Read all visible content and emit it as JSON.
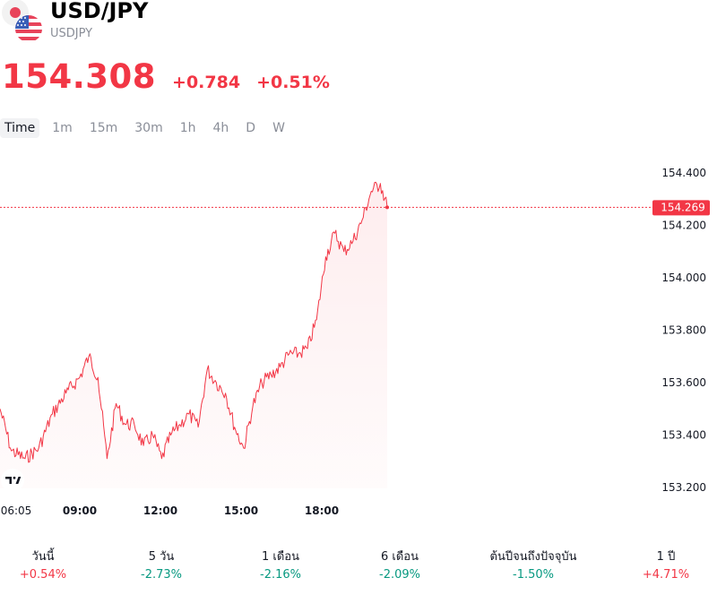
{
  "header": {
    "title": "USD/JPY",
    "subtitle": "USDJPY"
  },
  "quote": {
    "price": "154.308",
    "change": "+0.784",
    "change_percent": "+0.51%",
    "color": "#f23645"
  },
  "tabs": [
    "Time",
    "1m",
    "15m",
    "30m",
    "1h",
    "4h",
    "D",
    "W"
  ],
  "active_tab": "Time",
  "chart_data": {
    "type": "line",
    "ylim": [
      153.15,
      154.47
    ],
    "y_ticks": [
      "154.400",
      "154.200",
      "154.000",
      "153.800",
      "153.600",
      "153.400",
      "153.200"
    ],
    "x_ticks": [
      "06:05",
      "09:00",
      "12:00",
      "15:00",
      "18:00"
    ],
    "last_value_label": "154.269",
    "grid": false,
    "line_color": "#f23645",
    "series": [
      {
        "x": [
          "06:05",
          "06:30",
          "07:00",
          "07:30",
          "08:00",
          "08:30",
          "09:00",
          "09:20",
          "09:40",
          "10:00",
          "10:20",
          "10:40",
          "11:00",
          "11:20",
          "11:40",
          "12:00",
          "12:20",
          "12:40",
          "13:00",
          "13:20",
          "13:40",
          "14:00",
          "14:20",
          "14:40",
          "15:00",
          "15:20",
          "15:40",
          "16:00",
          "16:20",
          "16:40",
          "17:00",
          "17:20",
          "17:40",
          "18:00",
          "18:20",
          "18:40",
          "19:00",
          "19:20",
          "19:40",
          "20:00",
          "20:15"
        ],
        "values": [
          153.5,
          153.34,
          153.31,
          153.35,
          153.48,
          153.56,
          153.62,
          153.7,
          153.62,
          153.31,
          153.52,
          153.44,
          153.44,
          153.36,
          153.4,
          153.31,
          153.4,
          153.44,
          153.48,
          153.43,
          153.65,
          153.6,
          153.56,
          153.43,
          153.35,
          153.51,
          153.6,
          153.63,
          153.66,
          153.71,
          153.71,
          153.73,
          153.84,
          154.08,
          154.17,
          154.1,
          154.14,
          154.22,
          154.33,
          154.36,
          154.27
        ]
      }
    ]
  },
  "performance": [
    {
      "label": "วันนี้",
      "value": "+0.54%",
      "direction": "up"
    },
    {
      "label": "5 วัน",
      "value": "-2.73%",
      "direction": "down"
    },
    {
      "label": "1 เดือน",
      "value": "-2.16%",
      "direction": "down"
    },
    {
      "label": "6 เดือน",
      "value": "-2.09%",
      "direction": "down"
    },
    {
      "label": "ต้นปีจนถึงปัจจุบัน",
      "value": "-1.50%",
      "direction": "down"
    },
    {
      "label": "1 ปี",
      "value": "+4.71%",
      "direction": "up"
    }
  ]
}
